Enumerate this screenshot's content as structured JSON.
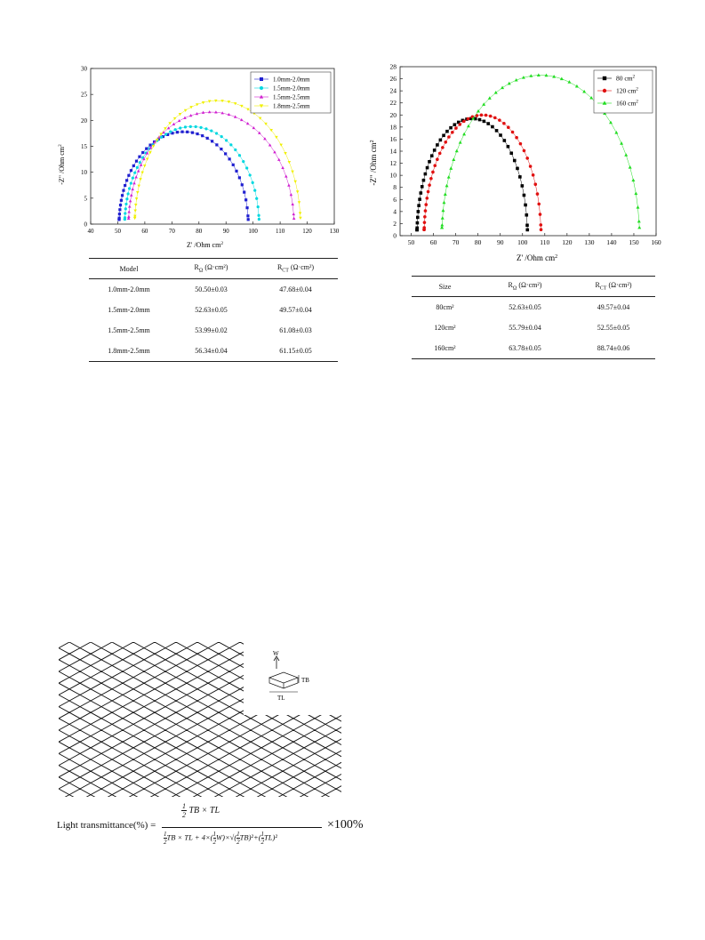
{
  "chart_data": [
    {
      "type": "scatter",
      "title": "",
      "xlabel": "Z' /Ohm cm",
      "xlabel_sup": "2",
      "ylabel": "-Z\" /Ohm cm",
      "ylabel_sup": "2",
      "xlim": [
        40,
        130
      ],
      "ylim": [
        0,
        30
      ],
      "xticks": [
        40,
        50,
        60,
        70,
        80,
        90,
        100,
        110,
        120,
        130
      ],
      "yticks": [
        0,
        5,
        10,
        15,
        20,
        25,
        30
      ],
      "legend_position": "top-right",
      "grid": false,
      "series": [
        {
          "name": "1.0mm-2.0mm",
          "color": "#1f1fd0",
          "marker": "square",
          "x0": 50.5,
          "x1": 98.2,
          "peak": 17.8
        },
        {
          "name": "1.5mm-2.0mm",
          "color": "#00d8e0",
          "marker": "circle",
          "x0": 52.6,
          "x1": 102.2,
          "peak": 18.8
        },
        {
          "name": "1.5mm-2.5mm",
          "color": "#d020d0",
          "marker": "triangle",
          "x0": 54.0,
          "x1": 115.1,
          "peak": 21.6
        },
        {
          "name": "1.8mm-2.5mm",
          "color": "#f0f000",
          "marker": "triangle-down",
          "x0": 56.3,
          "x1": 117.5,
          "peak": 23.8
        }
      ]
    },
    {
      "type": "scatter",
      "title": "",
      "xlabel": "Z' /Ohm cm",
      "xlabel_sup": "2",
      "ylabel": "-Z\" /Ohm cm",
      "ylabel_sup": "2",
      "xlim": [
        45,
        160
      ],
      "ylim": [
        0,
        28
      ],
      "xticks": [
        50,
        60,
        70,
        80,
        90,
        100,
        110,
        120,
        130,
        140,
        150,
        160
      ],
      "yticks": [
        0,
        2,
        4,
        6,
        8,
        10,
        12,
        14,
        16,
        18,
        20,
        22,
        24,
        26,
        28
      ],
      "legend_position": "top-right",
      "grid": false,
      "series": [
        {
          "name": "80 cm",
          "name_sup": "2",
          "color": "#000000",
          "marker": "square",
          "x0": 52.6,
          "x1": 102.2,
          "peak": 19.4
        },
        {
          "name": "120 cm",
          "name_sup": "2",
          "color": "#e01010",
          "marker": "circle",
          "x0": 55.8,
          "x1": 108.3,
          "peak": 20.0
        },
        {
          "name": "160 cm",
          "name_sup": "2",
          "color": "#22dd22",
          "marker": "triangle",
          "x0": 63.8,
          "x1": 152.5,
          "peak": 26.6
        }
      ]
    }
  ],
  "table1": {
    "headers": [
      "Model",
      "R",
      "R"
    ],
    "header_subs": [
      "",
      "Ω",
      "CT"
    ],
    "header_units": [
      "",
      " (Ω·cm²)",
      " (Ω·cm²)"
    ],
    "rows": [
      [
        "1.0mm-2.0mm",
        "50.50±0.03",
        "47.68±0.04"
      ],
      [
        "1.5mm-2.0mm",
        "52.63±0.05",
        "49.57±0.04"
      ],
      [
        "1.5mm-2.5mm",
        "53.99±0.02",
        "61.08±0.03"
      ],
      [
        "1.8mm-2.5mm",
        "56.34±0.04",
        "61.15±0.05"
      ]
    ]
  },
  "table2": {
    "headers": [
      "Size",
      "R",
      "R"
    ],
    "header_subs": [
      "",
      "Ω",
      "CT"
    ],
    "header_units": [
      "",
      " (Ω·cm²)",
      " (Ω·cm²)"
    ],
    "rows": [
      [
        "80cm²",
        "52.63±0.05",
        "49.57±0.04"
      ],
      [
        "120cm²",
        "55.79±0.04",
        "52.55±0.05"
      ],
      [
        "160cm²",
        "63.78±0.05",
        "88.74±0.06"
      ]
    ]
  },
  "mesh_diagram": {
    "label_w": "W",
    "label_tb": "TB",
    "label_tl": "TL"
  },
  "formula": {
    "lhs": "Light transmittance(%) =",
    "half": "1",
    "two": "2",
    "numerator_rest": "TB × TL",
    "denominator_rest": "TB × TL + 4×(",
    "w": "W",
    "times100": "×100%"
  }
}
